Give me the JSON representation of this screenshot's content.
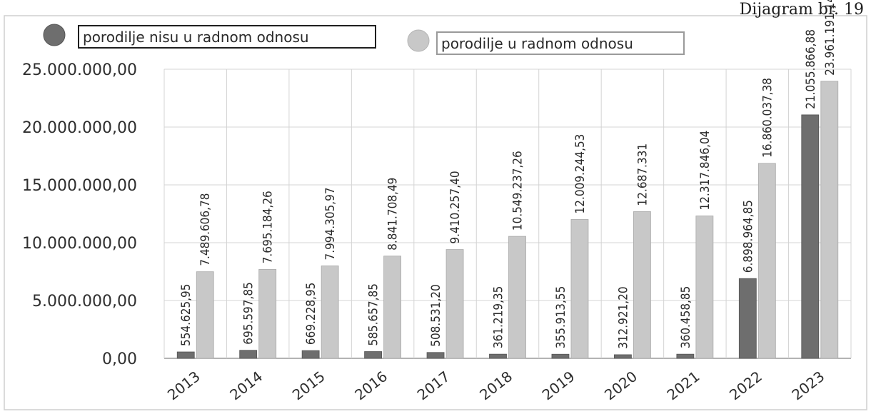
{
  "caption": "Dijagram br. 19",
  "colors": {
    "series_0": "#6e6e6e",
    "series_1": "#c8c8c8",
    "grid": "#d4d4d4"
  },
  "chart_data": {
    "type": "bar",
    "categories": [
      "2013",
      "2014",
      "2015",
      "2016",
      "2017",
      "2018",
      "2019",
      "2020",
      "2021",
      "2022",
      "2023"
    ],
    "series": [
      {
        "name": "porodilje nisu u radnom odnosu",
        "values": [
          554625.95,
          695597.85,
          669228.95,
          585657.85,
          508531.2,
          361219.35,
          355913.55,
          312921.2,
          360458.85,
          6898964.85,
          21055866.88
        ],
        "labels": [
          "554.625,95",
          "695.597,85",
          "669.228,95",
          "585.657,85",
          "508.531,20",
          "361.219,35",
          "355.913,55",
          "312.921,20",
          "360.458,85",
          "6.898.964,85",
          "21.055.866,88"
        ]
      },
      {
        "name": "porodilje u radnom odnosu",
        "values": [
          7489606.78,
          7695184.26,
          7994305.97,
          8841708.49,
          9410257.4,
          10549237.26,
          12009244.53,
          12687331,
          12317846.04,
          16860037.38,
          23961191.14
        ],
        "labels": [
          "7.489.606,78",
          "7.695.184,26",
          "7.994.305,97",
          "8.841.708,49",
          "9.410.257,40",
          "10.549.237,26",
          "12.009.244,53",
          "12.687.331",
          "12.317.846,04",
          "16.860.037,38",
          "23.961.191,14"
        ]
      }
    ],
    "ylim": [
      0,
      25000000
    ],
    "yticks": [
      0,
      5000000,
      10000000,
      15000000,
      20000000,
      25000000
    ],
    "ytick_labels": [
      "0,00",
      "5.000.000,00",
      "10.000.000,00",
      "15.000.000,00",
      "20.000.000,00",
      "25.000.000,00"
    ],
    "grid": true,
    "legend": "top"
  }
}
